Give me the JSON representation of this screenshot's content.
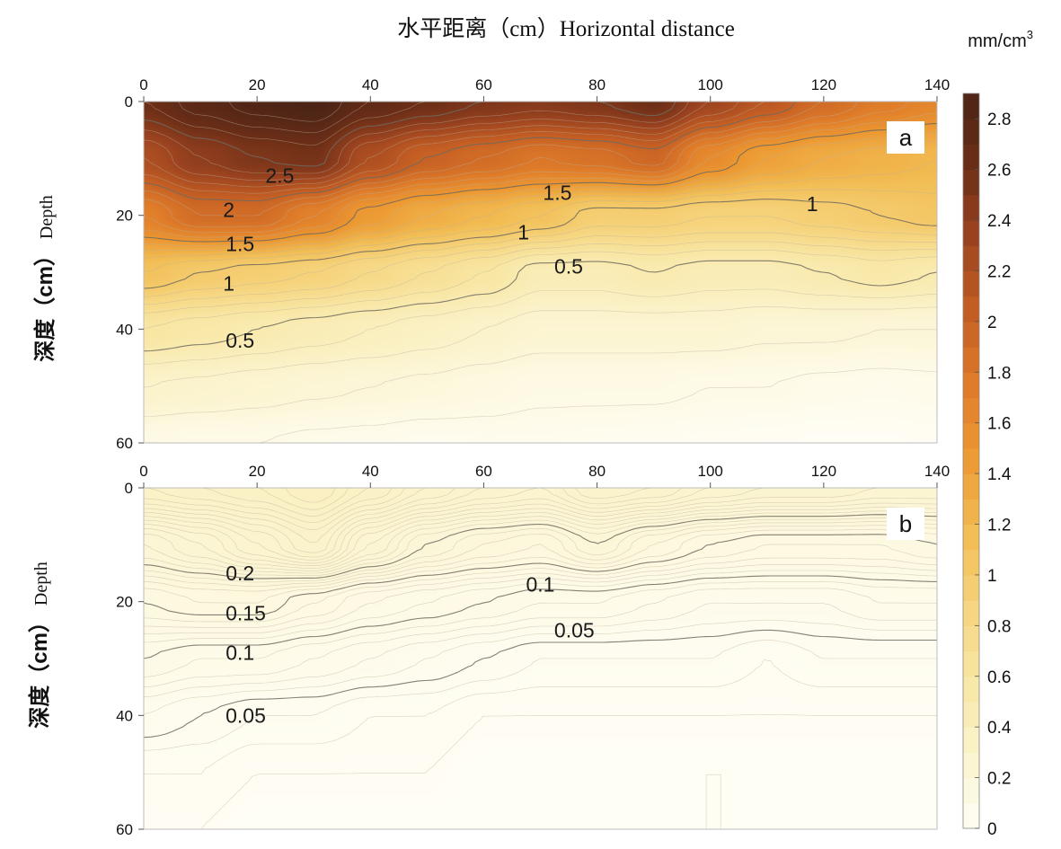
{
  "title": "水平距离（cm）Horizontal distance",
  "colorbar": {
    "unit": "mm/cm",
    "unit_sup": "3",
    "ticks": [
      "0",
      "0.2",
      "0.4",
      "0.6",
      "0.8",
      "1",
      "1.2",
      "1.4",
      "1.6",
      "1.8",
      "2",
      "2.2",
      "2.4",
      "2.6",
      "2.8"
    ],
    "range": [
      0,
      2.9
    ],
    "stops": [
      "#fffef6",
      "#fbf3cc",
      "#f8e7a5",
      "#f6d57f",
      "#f2bd54",
      "#ed9b34",
      "#e07d2a",
      "#c55f24",
      "#9d4420",
      "#6b2e17",
      "#4b2416"
    ]
  },
  "x_ticks": [
    "0",
    "20",
    "40",
    "60",
    "80",
    "100",
    "120",
    "140"
  ],
  "y_ticks": [
    "0",
    "20",
    "40",
    "60"
  ],
  "ylabel_cn": "深度（cm）",
  "ylabel_en": "Depth",
  "chart_data": [
    {
      "type": "heatmap",
      "panel": "a",
      "x_range": [
        0,
        140
      ],
      "y_range": [
        0,
        60
      ],
      "x": [
        0,
        10,
        20,
        30,
        40,
        50,
        60,
        70,
        80,
        90,
        100,
        110,
        120,
        130,
        140
      ],
      "y": [
        0,
        10,
        20,
        30,
        40,
        50,
        60
      ],
      "z": [
        [
          2.6,
          2.75,
          2.85,
          2.9,
          2.7,
          2.6,
          2.5,
          2.45,
          2.5,
          2.6,
          2.3,
          2.1,
          1.9,
          1.75,
          1.65
        ],
        [
          2.2,
          2.4,
          2.5,
          2.55,
          2.2,
          2.0,
          1.9,
          1.8,
          1.85,
          1.95,
          1.6,
          1.4,
          1.3,
          1.25,
          1.2
        ],
        [
          1.7,
          1.9,
          1.9,
          1.7,
          1.45,
          1.3,
          1.2,
          1.1,
          0.95,
          0.95,
          0.9,
          0.9,
          0.95,
          1.0,
          1.05
        ],
        [
          1.1,
          1.0,
          0.95,
          0.9,
          0.8,
          0.7,
          0.6,
          0.45,
          0.45,
          0.5,
          0.45,
          0.45,
          0.5,
          0.55,
          0.5
        ],
        [
          0.6,
          0.55,
          0.5,
          0.45,
          0.4,
          0.35,
          0.3,
          0.25,
          0.25,
          0.25,
          0.25,
          0.22,
          0.22,
          0.2,
          0.2
        ],
        [
          0.3,
          0.28,
          0.25,
          0.22,
          0.2,
          0.18,
          0.15,
          0.12,
          0.12,
          0.12,
          0.1,
          0.1,
          0.08,
          0.07,
          0.08
        ],
        [
          0.12,
          0.1,
          0.1,
          0.08,
          0.07,
          0.05,
          0.06,
          0.06,
          0.05,
          0.04,
          0.03,
          0.02,
          0.01,
          0.01,
          0.02
        ]
      ],
      "contour_labels": [
        {
          "text": "2.5",
          "x": 24,
          "y": 13
        },
        {
          "text": "2",
          "x": 15,
          "y": 19
        },
        {
          "text": "1.5",
          "x": 17,
          "y": 25
        },
        {
          "text": "1.5",
          "x": 73,
          "y": 16
        },
        {
          "text": "1",
          "x": 15,
          "y": 32
        },
        {
          "text": "1",
          "x": 67,
          "y": 23
        },
        {
          "text": "1",
          "x": 118,
          "y": 18
        },
        {
          "text": "0.5",
          "x": 17,
          "y": 42
        },
        {
          "text": "0.5",
          "x": 75,
          "y": 29
        }
      ]
    },
    {
      "type": "heatmap",
      "panel": "b",
      "x_range": [
        0,
        140
      ],
      "y_range": [
        0,
        60
      ],
      "x": [
        0,
        10,
        20,
        30,
        40,
        50,
        60,
        70,
        80,
        90,
        100,
        110,
        120,
        130,
        140
      ],
      "y": [
        0,
        10,
        20,
        30,
        40,
        50,
        60
      ],
      "z": [
        [
          0.32,
          0.33,
          0.34,
          0.36,
          0.33,
          0.3,
          0.28,
          0.27,
          0.3,
          0.29,
          0.27,
          0.26,
          0.26,
          0.25,
          0.25
        ],
        [
          0.22,
          0.24,
          0.27,
          0.3,
          0.24,
          0.2,
          0.18,
          0.17,
          0.2,
          0.17,
          0.15,
          0.14,
          0.14,
          0.14,
          0.15
        ],
        [
          0.15,
          0.16,
          0.16,
          0.14,
          0.12,
          0.11,
          0.1,
          0.09,
          0.09,
          0.08,
          0.07,
          0.07,
          0.07,
          0.08,
          0.08
        ],
        [
          0.1,
          0.09,
          0.09,
          0.08,
          0.07,
          0.06,
          0.05,
          0.04,
          0.04,
          0.04,
          0.04,
          0.03,
          0.04,
          0.04,
          0.04
        ],
        [
          0.06,
          0.05,
          0.04,
          0.04,
          0.03,
          0.03,
          0.02,
          0.02,
          0.02,
          0.02,
          0.02,
          0.02,
          0.02,
          0.02,
          0.02
        ],
        [
          0.03,
          0.03,
          0.02,
          0.02,
          0.02,
          0.02,
          0.01,
          0.01,
          0.01,
          0.01,
          0.01,
          0.01,
          0.01,
          0.01,
          0.01
        ],
        [
          0.02,
          0.02,
          0.01,
          0.01,
          0.01,
          0.01,
          0.01,
          0.01,
          0.01,
          0.01,
          0.01,
          0.01,
          0.01,
          0.01,
          0.01
        ]
      ],
      "contour_labels": [
        {
          "text": "0.2",
          "x": 17,
          "y": 15
        },
        {
          "text": "0.15",
          "x": 18,
          "y": 22
        },
        {
          "text": "0.1",
          "x": 17,
          "y": 29
        },
        {
          "text": "0.1",
          "x": 70,
          "y": 17
        },
        {
          "text": "0.05",
          "x": 18,
          "y": 40
        },
        {
          "text": "0.05",
          "x": 76,
          "y": 25
        }
      ]
    }
  ]
}
